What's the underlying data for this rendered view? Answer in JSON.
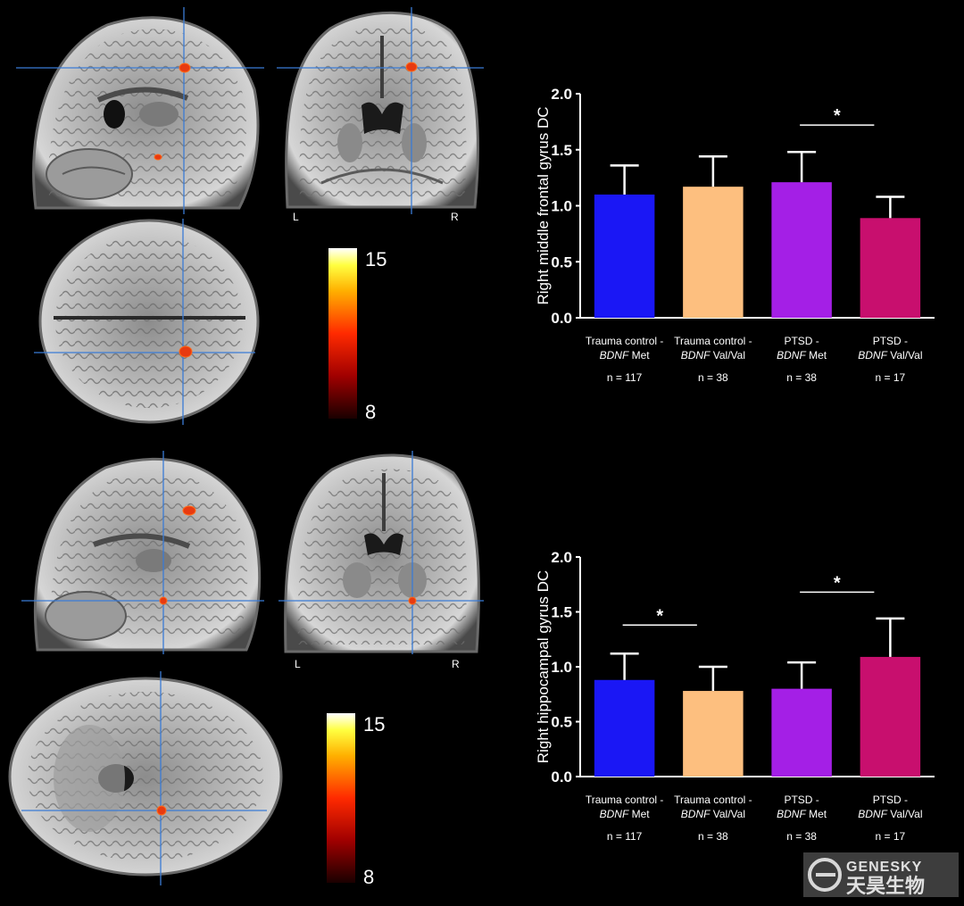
{
  "colorbar_top": {
    "max_label": "15",
    "min_label": "8"
  },
  "colorbar_bottom": {
    "max_label": "15",
    "min_label": "8"
  },
  "orientation": {
    "left": "L",
    "right": "R"
  },
  "watermark": {
    "text_en": "GENESKY",
    "text_cn": "天昊生物"
  },
  "colors": {
    "background": "#000000",
    "bar_trauma_met": "#1a17f5",
    "bar_trauma_valval": "#fdbf7f",
    "bar_ptsd_met": "#a41fe6",
    "bar_ptsd_valval": "#c80f6e",
    "crosshair": "#3a7bd5",
    "activation": "#e83a10"
  },
  "chart_data": [
    {
      "type": "bar",
      "ylabel": "Right middle frontal gyrus DC",
      "ylim": [
        0,
        2.0
      ],
      "yticks": [
        "0.0",
        "0.5",
        "1.0",
        "1.5",
        "2.0"
      ],
      "categories": [
        {
          "line1": "Trauma control -",
          "gene": "BDNF",
          "allele": "Met",
          "n": "n = 117"
        },
        {
          "line1": "Trauma control -",
          "gene": "BDNF",
          "allele": "Val/Val",
          "n": "n = 38"
        },
        {
          "line1": "PTSD -",
          "gene": "BDNF",
          "allele": "Met",
          "n": "n = 38"
        },
        {
          "line1": "PTSD -",
          "gene": "BDNF",
          "allele": "Val/Val",
          "n": "n = 17"
        }
      ],
      "values": [
        1.1,
        1.17,
        1.21,
        0.89
      ],
      "errors": [
        0.26,
        0.27,
        0.27,
        0.19
      ],
      "significance": [
        {
          "from": 2,
          "to": 3,
          "y": 1.72,
          "label": "*"
        }
      ]
    },
    {
      "type": "bar",
      "ylabel": "Right hippocampal gyrus DC",
      "ylim": [
        0,
        2.0
      ],
      "yticks": [
        "0.0",
        "0.5",
        "1.0",
        "1.5",
        "2.0"
      ],
      "categories": [
        {
          "line1": "Trauma control -",
          "gene": "BDNF",
          "allele": "Met",
          "n": "n = 117"
        },
        {
          "line1": "Trauma control -",
          "gene": "BDNF",
          "allele": "Val/Val",
          "n": "n = 38"
        },
        {
          "line1": "PTSD -",
          "gene": "BDNF",
          "allele": "Met",
          "n": "n = 38"
        },
        {
          "line1": "PTSD -",
          "gene": "BDNF",
          "allele": "Val/Val",
          "n": "n = 17"
        }
      ],
      "values": [
        0.88,
        0.78,
        0.8,
        1.09
      ],
      "errors": [
        0.24,
        0.22,
        0.24,
        0.35
      ],
      "significance": [
        {
          "from": 0,
          "to": 1,
          "y": 1.38,
          "label": "*"
        },
        {
          "from": 2,
          "to": 3,
          "y": 1.68,
          "label": "*"
        }
      ]
    }
  ]
}
